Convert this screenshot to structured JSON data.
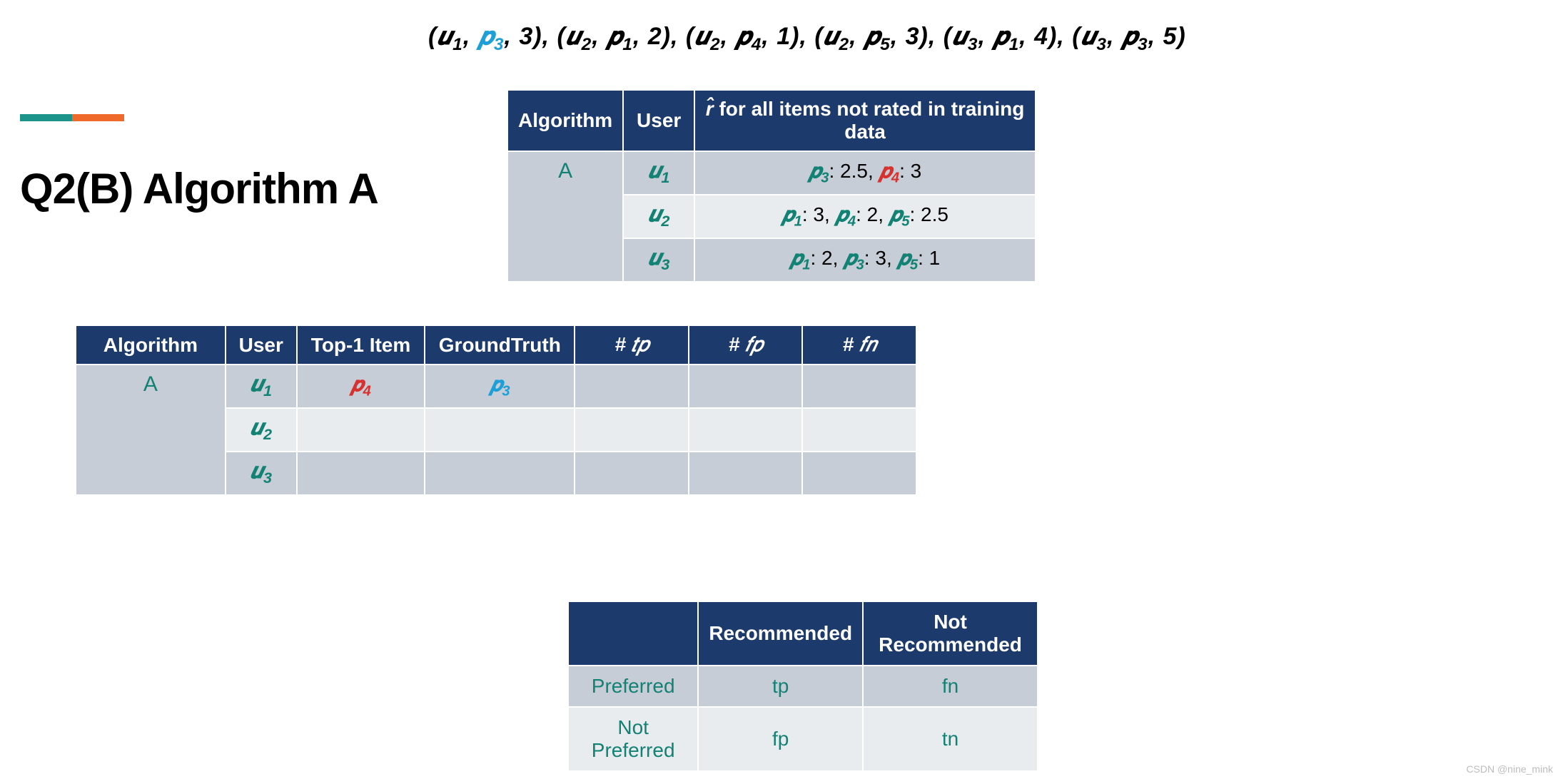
{
  "heading": "Q2(B) Algorithm A",
  "accent_colors": {
    "teal": "#1d9489",
    "orange": "#ef6a2a"
  },
  "formula_tuples": [
    {
      "u": "1",
      "p": "3",
      "r": "3",
      "p_color": "blue"
    },
    {
      "u": "2",
      "p": "1",
      "r": "2",
      "p_color": "black"
    },
    {
      "u": "2",
      "p": "4",
      "r": "1",
      "p_color": "black"
    },
    {
      "u": "2",
      "p": "5",
      "r": "3",
      "p_color": "black"
    },
    {
      "u": "3",
      "p": "1",
      "r": "4",
      "p_color": "black"
    },
    {
      "u": "3",
      "p": "3",
      "r": "5",
      "p_color": "black"
    }
  ],
  "table1": {
    "headers": {
      "algo": "Algorithm",
      "user": "User",
      "rhat_prefix": "r̂",
      "rhat_rest": " for all items not rated in training data"
    },
    "algo_value": "A",
    "rows": [
      {
        "user_sub": "1",
        "items": [
          {
            "p": "3",
            "v": "2.5",
            "color": "teal"
          },
          {
            "p": "4",
            "v": "3",
            "color": "red"
          }
        ]
      },
      {
        "user_sub": "2",
        "items": [
          {
            "p": "1",
            "v": "3",
            "color": "teal"
          },
          {
            "p": "4",
            "v": "2",
            "color": "teal"
          },
          {
            "p": "5",
            "v": "2.5",
            "color": "teal"
          }
        ]
      },
      {
        "user_sub": "3",
        "items": [
          {
            "p": "1",
            "v": "2",
            "color": "teal"
          },
          {
            "p": "3",
            "v": "3",
            "color": "teal"
          },
          {
            "p": "5",
            "v": "1",
            "color": "teal"
          }
        ]
      }
    ]
  },
  "table2": {
    "headers": {
      "algo": "Algorithm",
      "user": "User",
      "top1": "Top-1 Item",
      "gt": "GroundTruth",
      "tp": "# 𝑡𝑝",
      "fp": "# 𝑓𝑝",
      "fn": "# 𝑓𝑛"
    },
    "algo_value": "A",
    "rows": [
      {
        "user_sub": "1",
        "top1_p": "4",
        "gt_p": "3",
        "tp": "",
        "fp": "",
        "fn": ""
      },
      {
        "user_sub": "2",
        "top1_p": "",
        "gt_p": "",
        "tp": "",
        "fp": "",
        "fn": ""
      },
      {
        "user_sub": "3",
        "top1_p": "",
        "gt_p": "",
        "tp": "",
        "fp": "",
        "fn": ""
      }
    ]
  },
  "table3": {
    "headers": {
      "rec": "Recommended",
      "nrec": "Not Recommended"
    },
    "rows": [
      {
        "label": "Preferred",
        "rec": "tp",
        "nrec": "fn"
      },
      {
        "label": "Not Preferred",
        "rec": "fp",
        "nrec": "tn"
      }
    ]
  },
  "watermark": "CSDN @nine_mink",
  "colors": {
    "header_bg": "#1c3a6b",
    "cell_bg": "#c7cdd6",
    "cell_alt_bg": "#e9ecef",
    "teal_text": "#128275",
    "red_text": "#d8322f",
    "blue_text": "#1da0d7"
  }
}
